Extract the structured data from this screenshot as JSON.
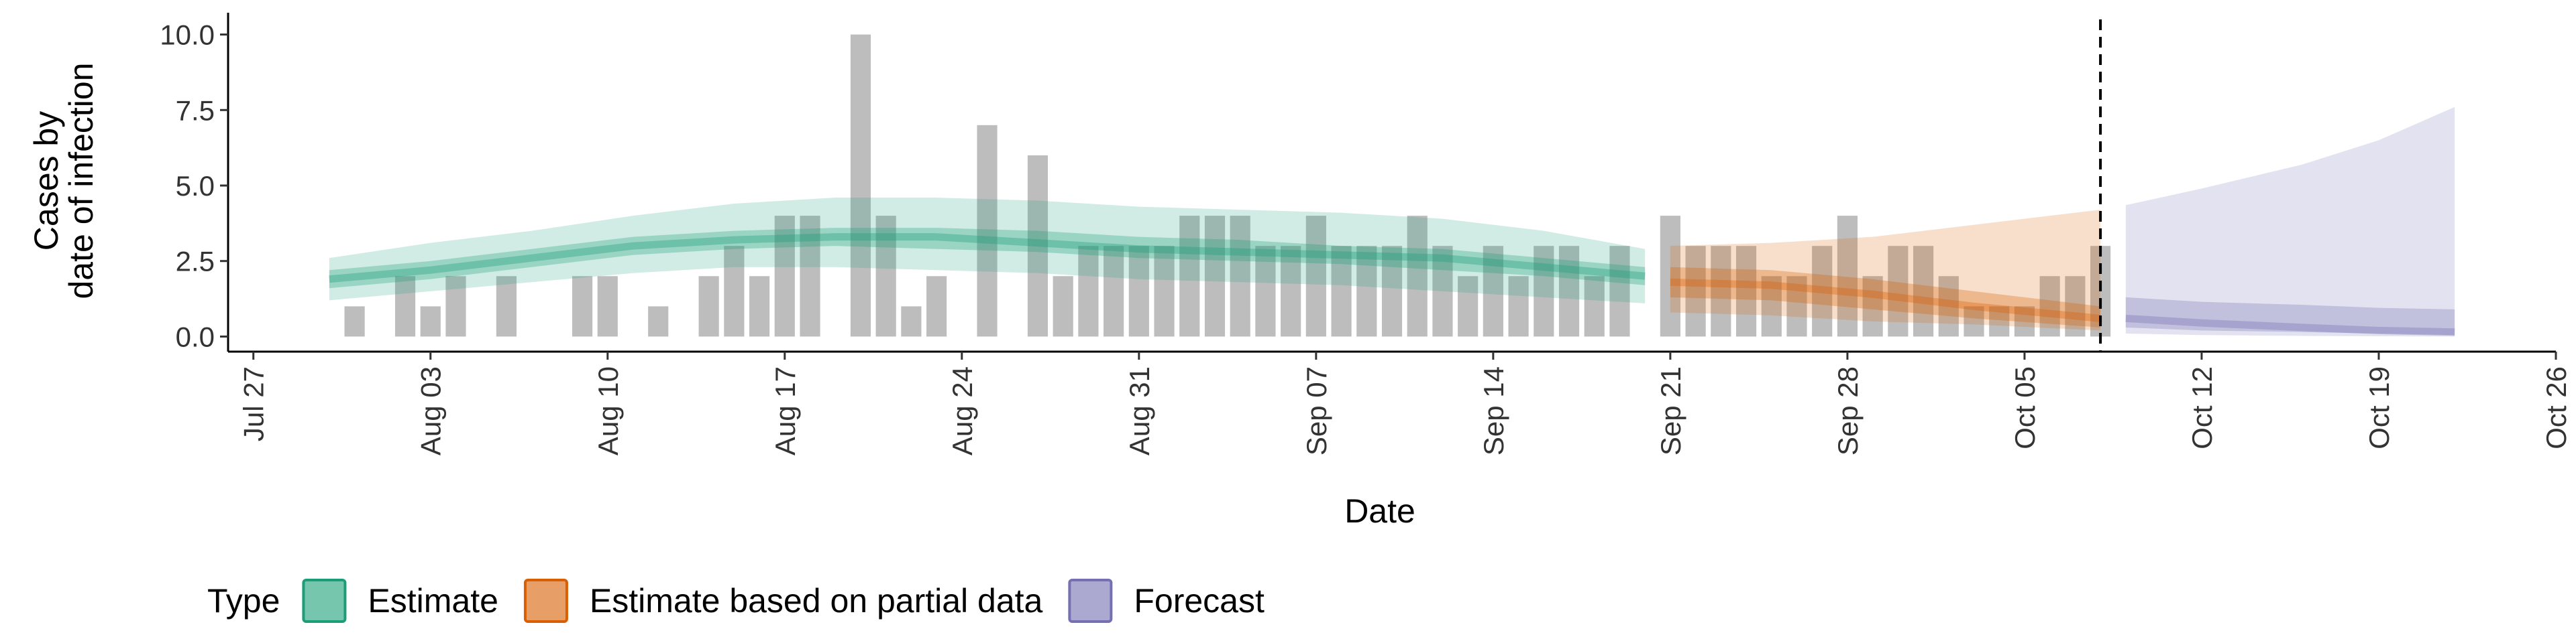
{
  "chart_data": {
    "type": "ribbon",
    "ylabel": [
      "Cases by",
      "date of infection"
    ],
    "xlabel": "Date",
    "legend_title": "Type",
    "legend": "bottom",
    "dates": [
      "Jul 26",
      "Jul 27",
      "Jul 28",
      "Jul 29",
      "Jul 30",
      "Jul 31",
      "Aug 01",
      "Aug 02",
      "Aug 03",
      "Aug 04",
      "Aug 05",
      "Aug 06",
      "Aug 07",
      "Aug 08",
      "Aug 09",
      "Aug 10",
      "Aug 11",
      "Aug 12",
      "Aug 13",
      "Aug 14",
      "Aug 15",
      "Aug 16",
      "Aug 17",
      "Aug 18",
      "Aug 19",
      "Aug 20",
      "Aug 21",
      "Aug 22",
      "Aug 23",
      "Aug 24",
      "Aug 25",
      "Aug 26",
      "Aug 27",
      "Aug 28",
      "Aug 29",
      "Aug 30",
      "Aug 31",
      "Sep 01",
      "Sep 02",
      "Sep 03",
      "Sep 04",
      "Sep 05",
      "Sep 06",
      "Sep 07",
      "Sep 08",
      "Sep 09",
      "Sep 10",
      "Sep 11",
      "Sep 12",
      "Sep 13",
      "Sep 14",
      "Sep 15",
      "Sep 16",
      "Sep 17",
      "Sep 18",
      "Sep 19",
      "Sep 20",
      "Sep 21",
      "Sep 22",
      "Sep 23",
      "Sep 24",
      "Sep 25",
      "Sep 26",
      "Sep 27",
      "Sep 28",
      "Sep 29",
      "Sep 30",
      "Oct 01",
      "Oct 02",
      "Oct 03",
      "Oct 04",
      "Oct 05",
      "Oct 06",
      "Oct 07",
      "Oct 08",
      "Oct 09",
      "Oct 10",
      "Oct 11",
      "Oct 12",
      "Oct 13",
      "Oct 14",
      "Oct 15",
      "Oct 16",
      "Oct 17",
      "Oct 18",
      "Oct 19",
      "Oct 20",
      "Oct 21",
      "Oct 22",
      "Oct 23",
      "Oct 24",
      "Oct 25",
      "Oct 26"
    ],
    "xlim": [
      "Jul 26",
      "Oct 26"
    ],
    "xticks": [
      "Jul 27",
      "Aug 03",
      "Aug 10",
      "Aug 17",
      "Aug 24",
      "Aug 31",
      "Sep 07",
      "Sep 14",
      "Sep 21",
      "Sep 28",
      "Oct 05",
      "Oct 12",
      "Oct 19",
      "Oct 26"
    ],
    "ylim": [
      -0.5,
      10.5
    ],
    "yticks": [
      {
        "value": 0,
        "label": "0.0"
      },
      2.5,
      {
        "value": 5,
        "label": "5.0"
      },
      7.5,
      {
        "value": 10,
        "label": "10.0"
      }
    ],
    "vline": "Oct 08",
    "bars": {
      "color": "#bdbdbd",
      "x": [
        "Jul 31",
        "Aug 02",
        "Aug 03",
        "Aug 04",
        "Aug 06",
        "Aug 09",
        "Aug 10",
        "Aug 12",
        "Aug 14",
        "Aug 15",
        "Aug 16",
        "Aug 17",
        "Aug 18",
        "Aug 20",
        "Aug 21",
        "Aug 22",
        "Aug 23",
        "Aug 25",
        "Aug 27",
        "Aug 28",
        "Aug 29",
        "Aug 30",
        "Aug 31",
        "Sep 01",
        "Sep 02",
        "Sep 03",
        "Sep 04",
        "Sep 05",
        "Sep 06",
        "Sep 07",
        "Sep 08",
        "Sep 09",
        "Sep 10",
        "Sep 11",
        "Sep 12",
        "Sep 13",
        "Sep 14",
        "Sep 15",
        "Sep 16",
        "Sep 17",
        "Sep 18",
        "Sep 19",
        "Sep 21",
        "Sep 22",
        "Sep 23",
        "Sep 24",
        "Sep 25",
        "Sep 26",
        "Sep 27",
        "Sep 28",
        "Sep 29",
        "Sep 30",
        "Oct 01",
        "Oct 02",
        "Oct 03",
        "Oct 04",
        "Oct 05",
        "Oct 06",
        "Oct 07",
        "Oct 08"
      ],
      "values": [
        1,
        2,
        1,
        2,
        2,
        2,
        2,
        1,
        2,
        3,
        2,
        4,
        4,
        10,
        4,
        1,
        2,
        7,
        6,
        2,
        3,
        3,
        3,
        3,
        4,
        4,
        4,
        3,
        3,
        4,
        3,
        3,
        3,
        4,
        3,
        2,
        3,
        2,
        3,
        3,
        2,
        3,
        4,
        3,
        3,
        3,
        2,
        2,
        3,
        4,
        2,
        3,
        3,
        2,
        1,
        1,
        1,
        2,
        2,
        3
      ]
    },
    "series": [
      {
        "name": "Estimate",
        "color": "#1b9e77",
        "x": [
          "Jul 30",
          "Aug 03",
          "Aug 07",
          "Aug 11",
          "Aug 15",
          "Aug 19",
          "Aug 23",
          "Aug 27",
          "Aug 31",
          "Sep 04",
          "Sep 08",
          "Sep 12",
          "Sep 16",
          "Sep 20"
        ],
        "median": [
          1.9,
          2.2,
          2.6,
          3.0,
          3.2,
          3.3,
          3.3,
          3.1,
          2.9,
          2.8,
          2.7,
          2.6,
          2.3,
          2.0
        ],
        "lower_50": [
          1.6,
          1.9,
          2.3,
          2.7,
          2.9,
          3.0,
          2.9,
          2.8,
          2.6,
          2.5,
          2.4,
          2.2,
          2.0,
          1.7
        ],
        "upper_50": [
          2.2,
          2.5,
          2.9,
          3.3,
          3.5,
          3.6,
          3.6,
          3.5,
          3.3,
          3.2,
          3.0,
          2.9,
          2.6,
          2.3
        ],
        "lower_90": [
          1.2,
          1.5,
          1.8,
          2.1,
          2.3,
          2.3,
          2.2,
          2.1,
          1.9,
          1.8,
          1.7,
          1.5,
          1.3,
          1.1
        ],
        "upper_90": [
          2.6,
          3.1,
          3.5,
          4.0,
          4.4,
          4.6,
          4.6,
          4.5,
          4.3,
          4.2,
          4.1,
          3.9,
          3.5,
          2.9
        ]
      },
      {
        "name": "Estimate based on partial data",
        "color": "#d95f02",
        "x": [
          "Sep 21",
          "Sep 25",
          "Sep 29",
          "Oct 03",
          "Oct 08"
        ],
        "median": [
          1.8,
          1.7,
          1.4,
          1.0,
          0.6
        ],
        "lower_50": [
          1.3,
          1.2,
          0.9,
          0.6,
          0.3
        ],
        "upper_50": [
          2.3,
          2.2,
          1.9,
          1.5,
          1.0
        ],
        "lower_90": [
          0.8,
          0.7,
          0.5,
          0.4,
          0.2
        ],
        "upper_90": [
          3.0,
          3.1,
          3.3,
          3.7,
          4.2
        ]
      },
      {
        "name": "Forecast",
        "color": "#7570b3",
        "x": [
          "Oct 09",
          "Oct 12",
          "Oct 16",
          "Oct 19",
          "Oct 22"
        ],
        "median": [
          0.6,
          0.45,
          0.3,
          0.2,
          0.15
        ],
        "lower_50": [
          0.3,
          0.2,
          0.15,
          0.1,
          0.05
        ],
        "upper_50": [
          1.3,
          1.15,
          1.05,
          0.95,
          0.9
        ],
        "lower_90": [
          0.1,
          0.05,
          0.02,
          0.01,
          0
        ],
        "upper_90": [
          4.35,
          4.9,
          5.7,
          6.5,
          7.6
        ]
      }
    ]
  }
}
